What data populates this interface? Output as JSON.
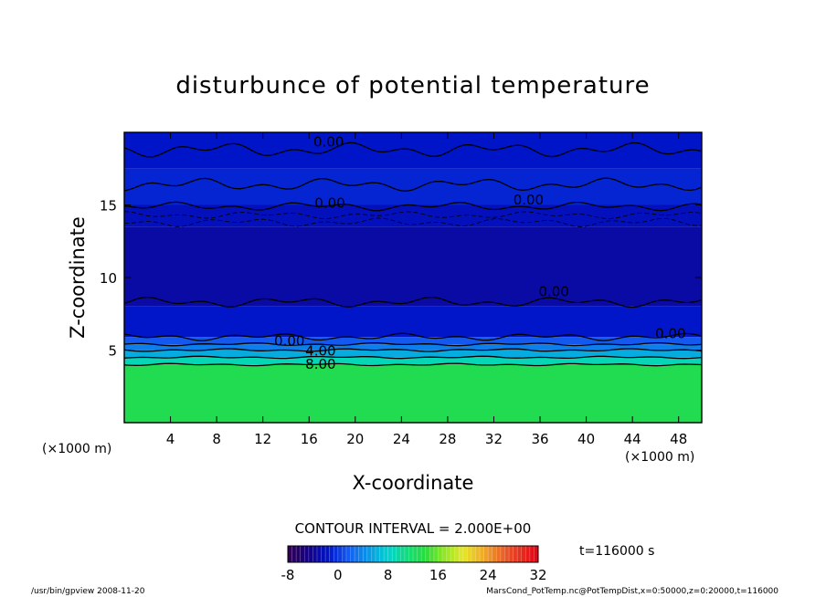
{
  "chart_data": {
    "type": "heatmap",
    "title": "disturbunce of potential temperature",
    "xlabel": "X-coordinate",
    "ylabel": "Z-coordinate",
    "x_unit_left": "(×1000 m)",
    "x_unit_right": "(×1000 m)",
    "xlim": [
      0,
      50
    ],
    "ylim": [
      0,
      20
    ],
    "x_ticks": [
      4,
      8,
      12,
      16,
      20,
      24,
      28,
      32,
      36,
      40,
      44,
      48
    ],
    "y_ticks": [
      5,
      10,
      15
    ],
    "field_bands": [
      {
        "z_from": 0,
        "z_to": 4,
        "value": 13
      },
      {
        "z_from": 4,
        "z_to": 4.5,
        "value": 9
      },
      {
        "z_from": 4.5,
        "z_to": 5,
        "value": 6
      },
      {
        "z_from": 5,
        "z_to": 5.4,
        "value": 3.5
      },
      {
        "z_from": 5.4,
        "z_to": 5.9,
        "value": 1.5
      },
      {
        "z_from": 5.9,
        "z_to": 8,
        "value": -1.5
      },
      {
        "z_from": 8,
        "z_to": 13.5,
        "value": -3.2
      },
      {
        "z_from": 13.5,
        "z_to": 15,
        "value": -2.2
      },
      {
        "z_from": 15,
        "z_to": 17.5,
        "value": -0.8
      },
      {
        "z_from": 17.5,
        "z_to": 20,
        "value": -1.6
      }
    ],
    "contour_labels": [
      {
        "text": "0.00",
        "x": 17.7,
        "z": 19.4
      },
      {
        "text": "0.00",
        "x": 17.8,
        "z": 15.2
      },
      {
        "text": "0.00",
        "x": 35.0,
        "z": 15.4
      },
      {
        "text": "0.00",
        "x": 37.2,
        "z": 9.1
      },
      {
        "text": "0.00",
        "x": 14.3,
        "z": 5.7
      },
      {
        "text": "0.00",
        "x": 47.3,
        "z": 6.2
      },
      {
        "text": "4.00",
        "x": 17.0,
        "z": 5.0
      },
      {
        "text": "8.00",
        "x": 17.0,
        "z": 4.1
      }
    ],
    "contour_interval_text": "CONTOUR INTERVAL = 2.000E+00",
    "colorbar": {
      "min": -8,
      "max": 32,
      "tick_labels": [
        "-8",
        "0",
        "8",
        "16",
        "24",
        "32"
      ]
    },
    "time_label": "t=116000 s"
  },
  "footer": {
    "left": "/usr/bin/gpview  2008-11-20",
    "right": "MarsCond_PotTemp.nc@PotTempDist,x=0:50000,z=0:20000,t=116000"
  }
}
